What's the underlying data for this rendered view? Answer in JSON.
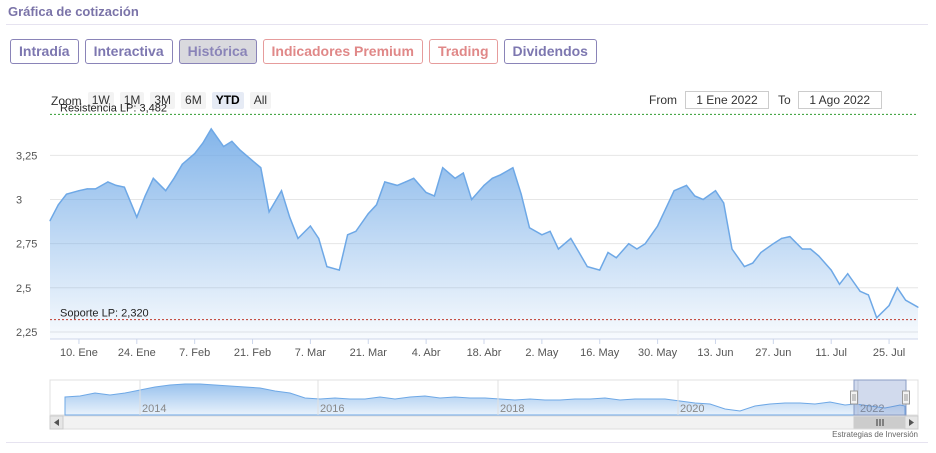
{
  "header": {
    "title": "Gráfica de cotización"
  },
  "tabs": [
    {
      "label": "Intradía",
      "state": "normal"
    },
    {
      "label": "Interactiva",
      "state": "normal"
    },
    {
      "label": "Histórica",
      "state": "active"
    },
    {
      "label": "Indicadores Premium",
      "state": "premium"
    },
    {
      "label": "Trading",
      "state": "premium"
    },
    {
      "label": "Dividendos",
      "state": "normal"
    }
  ],
  "zoom": {
    "label": "Zoom",
    "buttons": [
      "1W",
      "1M",
      "3M",
      "6M",
      "YTD",
      "All"
    ],
    "selected": "YTD"
  },
  "range": {
    "from_label": "From",
    "from_value": "1 Ene 2022",
    "to_label": "To",
    "to_value": "1 Ago 2022"
  },
  "credit": "Estrategias de Inversión",
  "colors": {
    "accent": "#7d77b0",
    "line": "#6ea8e6",
    "resistance": "#2e9b2e",
    "support": "#c0392b"
  },
  "chart_data": {
    "type": "area",
    "title": "",
    "xlabel": "",
    "ylabel": "",
    "ylim": [
      2.21,
      3.49
    ],
    "grid": true,
    "y_ticks": [
      "3,25",
      "3",
      "2,75",
      "2,5",
      "2,25"
    ],
    "x_ticks": [
      "10. Ene",
      "24. Ene",
      "7. Feb",
      "21. Feb",
      "7. Mar",
      "21. Mar",
      "4. Abr",
      "18. Abr",
      "2. May",
      "16. May",
      "30. May",
      "13. Jun",
      "27. Jun",
      "11. Jul",
      "25. Jul"
    ],
    "x": [
      "2022-01-03",
      "2022-01-05",
      "2022-01-07",
      "2022-01-10",
      "2022-01-12",
      "2022-01-14",
      "2022-01-17",
      "2022-01-19",
      "2022-01-21",
      "2022-01-24",
      "2022-01-26",
      "2022-01-28",
      "2022-01-31",
      "2022-02-02",
      "2022-02-04",
      "2022-02-07",
      "2022-02-09",
      "2022-02-11",
      "2022-02-14",
      "2022-02-16",
      "2022-02-18",
      "2022-02-21",
      "2022-02-23",
      "2022-02-25",
      "2022-02-28",
      "2022-03-02",
      "2022-03-04",
      "2022-03-07",
      "2022-03-09",
      "2022-03-11",
      "2022-03-14",
      "2022-03-16",
      "2022-03-18",
      "2022-03-21",
      "2022-03-23",
      "2022-03-25",
      "2022-03-28",
      "2022-03-30",
      "2022-04-01",
      "2022-04-04",
      "2022-04-06",
      "2022-04-08",
      "2022-04-11",
      "2022-04-13",
      "2022-04-15",
      "2022-04-18",
      "2022-04-20",
      "2022-04-22",
      "2022-04-25",
      "2022-04-27",
      "2022-04-29",
      "2022-05-02",
      "2022-05-04",
      "2022-05-06",
      "2022-05-09",
      "2022-05-11",
      "2022-05-13",
      "2022-05-16",
      "2022-05-18",
      "2022-05-20",
      "2022-05-23",
      "2022-05-25",
      "2022-05-27",
      "2022-05-30",
      "2022-06-01",
      "2022-06-03",
      "2022-06-06",
      "2022-06-08",
      "2022-06-10",
      "2022-06-13",
      "2022-06-15",
      "2022-06-17",
      "2022-06-20",
      "2022-06-22",
      "2022-06-24",
      "2022-06-27",
      "2022-06-29",
      "2022-07-01",
      "2022-07-04",
      "2022-07-06",
      "2022-07-08",
      "2022-07-11",
      "2022-07-13",
      "2022-07-15",
      "2022-07-18",
      "2022-07-20",
      "2022-07-22",
      "2022-07-25",
      "2022-07-27",
      "2022-07-29",
      "2022-08-01"
    ],
    "series": [
      {
        "name": "",
        "values": [
          2.88,
          2.97,
          3.03,
          3.05,
          3.06,
          3.06,
          3.1,
          3.08,
          3.07,
          2.9,
          3.02,
          3.12,
          3.05,
          3.12,
          3.2,
          3.26,
          3.32,
          3.4,
          3.3,
          3.33,
          3.28,
          3.22,
          3.18,
          2.93,
          3.05,
          2.9,
          2.78,
          2.85,
          2.78,
          2.62,
          2.6,
          2.8,
          2.82,
          2.92,
          2.97,
          3.1,
          3.08,
          3.1,
          3.12,
          3.04,
          3.02,
          3.18,
          3.12,
          3.15,
          3.0,
          3.08,
          3.12,
          3.14,
          3.18,
          3.03,
          2.84,
          2.8,
          2.82,
          2.72,
          2.78,
          2.7,
          2.62,
          2.6,
          2.7,
          2.67,
          2.75,
          2.72,
          2.75,
          2.85,
          2.95,
          3.05,
          3.08,
          3.02,
          3.0,
          3.05,
          2.98,
          2.72,
          2.62,
          2.64,
          2.7,
          2.75,
          2.78,
          2.79,
          2.72,
          2.72,
          2.68,
          2.6,
          2.52,
          2.58,
          2.48,
          2.46,
          2.33,
          2.4,
          2.5,
          2.43,
          2.39
        ]
      }
    ],
    "annotations": [
      {
        "label": "Resistencia LP: 3,482",
        "value": 3.482
      },
      {
        "label": "Soporte LP: 2,320",
        "value": 2.32
      }
    ],
    "navigator": {
      "labels": [
        "2014",
        "2016",
        "2018",
        "2020",
        "2022"
      ]
    }
  }
}
